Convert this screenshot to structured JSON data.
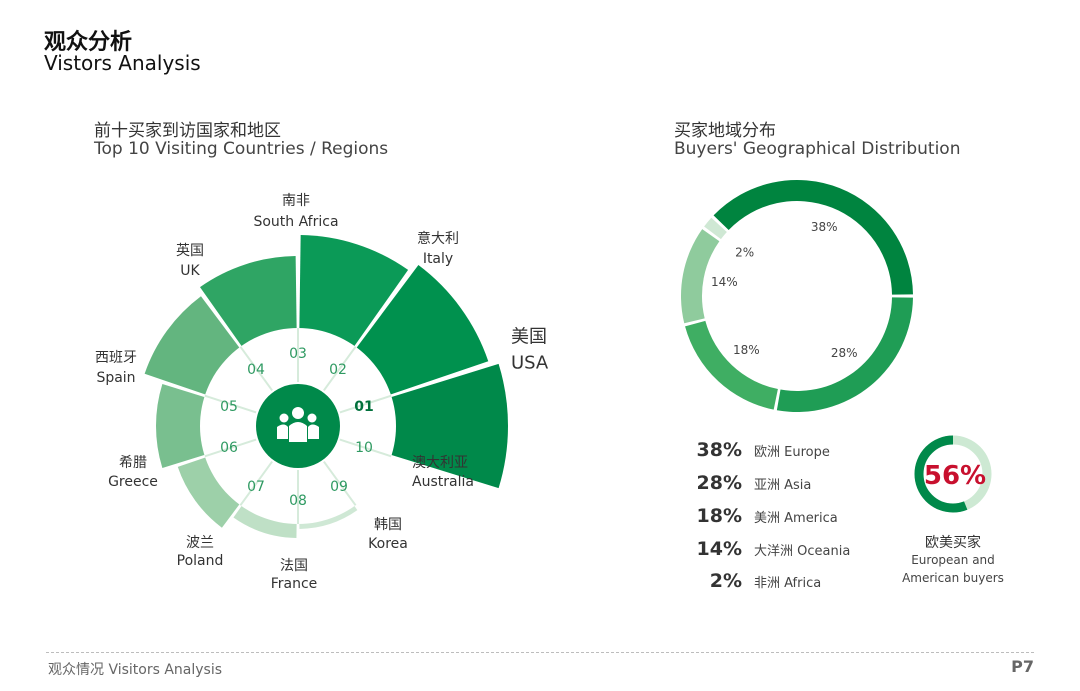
{
  "header": {
    "title_cn": "观众分析",
    "title_en": "Vistors Analysis"
  },
  "left_section": {
    "title_cn": "前十买家到访国家和地区",
    "title_en": "Top 10 Visiting Countries / Regions"
  },
  "right_section": {
    "title_cn": "买家地域分布",
    "title_en": "Buyers' Geographical Distribution"
  },
  "colors": {
    "dark_green": "#00894a",
    "mid_green": "#4caf6e",
    "light_green": "#a9d9b3",
    "pale_green": "#d7eddc",
    "accent_red": "#c8102e"
  },
  "chart_data": [
    {
      "type": "polar-area",
      "center_icon": "people-group-icon",
      "categories": [
        {
          "rank": "01",
          "label_cn": "美国",
          "label_en": "USA"
        },
        {
          "rank": "02",
          "label_cn": "意大利",
          "label_en": "Italy"
        },
        {
          "rank": "03",
          "label_cn": "南非",
          "label_en": "South Africa"
        },
        {
          "rank": "04",
          "label_cn": "英国",
          "label_en": "UK"
        },
        {
          "rank": "05",
          "label_cn": "西班牙",
          "label_en": "Spain"
        },
        {
          "rank": "06",
          "label_cn": "希腊",
          "label_en": "Greece"
        },
        {
          "rank": "07",
          "label_cn": "波兰",
          "label_en": "Poland"
        },
        {
          "rank": "08",
          "label_cn": "法国",
          "label_en": "France"
        },
        {
          "rank": "09",
          "label_cn": "韩国",
          "label_en": "Korea"
        },
        {
          "rank": "10",
          "label_cn": "澳大利亚",
          "label_en": "Australia"
        }
      ]
    },
    {
      "type": "pie",
      "subtype": "donut",
      "series": [
        {
          "label_cn": "欧洲",
          "label_en": "Europe",
          "value": 38,
          "text": "38%"
        },
        {
          "label_cn": "非洲",
          "label_en": "Africa",
          "value": 2,
          "text": "2%"
        },
        {
          "label_cn": "大洋洲",
          "label_en": "Oceania",
          "value": 14,
          "text": "14%"
        },
        {
          "label_cn": "美洲",
          "label_en": "America",
          "value": 18,
          "text": "18%"
        },
        {
          "label_cn": "亚洲",
          "label_en": "Asia",
          "value": 28,
          "text": "28%"
        }
      ]
    },
    {
      "type": "pie",
      "subtype": "gauge",
      "value": 56,
      "text": "56%",
      "label_cn": "欧美买家",
      "label_en_1": "European and",
      "label_en_2": "American buyers"
    }
  ],
  "legend": [
    {
      "pct": "38%",
      "label": "欧洲 Europe"
    },
    {
      "pct": "28%",
      "label": "亚洲 Asia"
    },
    {
      "pct": "18%",
      "label": "美洲 America"
    },
    {
      "pct": "14%",
      "label": "大洋洲 Oceania"
    },
    {
      "pct": "2%",
      "label": "非洲 Africa"
    }
  ],
  "footer": {
    "left": "观众情况  Visitors Analysis",
    "page": "P7"
  }
}
